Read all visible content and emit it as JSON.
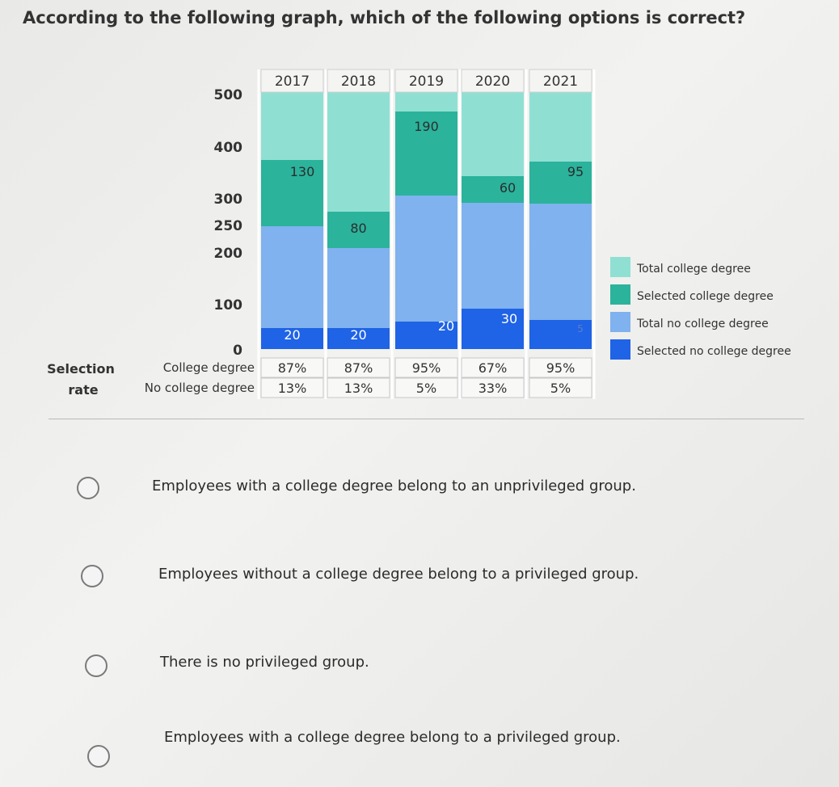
{
  "question": "According to the following graph, which of the following options is correct?",
  "chart_data": {
    "type": "bar",
    "stacked": true,
    "categories": [
      "2017",
      "2018",
      "2019",
      "2020",
      "2021"
    ],
    "yticks": [
      "500",
      "400",
      "300",
      "250",
      "200",
      "100",
      "0"
    ],
    "series": [
      {
        "name": "Total college degree",
        "color": "#8fe0d3",
        "values": [
          null,
          null,
          null,
          null,
          null
        ]
      },
      {
        "name": "Selected college degree",
        "color": "#2bb39c",
        "values": [
          130,
          80,
          190,
          60,
          95
        ]
      },
      {
        "name": "Total no college degree",
        "color": "#7fb2ee",
        "values": [
          null,
          null,
          null,
          null,
          null
        ]
      },
      {
        "name": "Selected no college degree",
        "color": "#1f63e6",
        "values": [
          20,
          20,
          20,
          30,
          5
        ]
      }
    ],
    "selection_rate": {
      "label_line1": "Selection",
      "label_line2": "rate",
      "rows": [
        {
          "label": "College degree",
          "values": [
            "87%",
            "87%",
            "95%",
            "67%",
            "95%"
          ]
        },
        {
          "label": "No college degree",
          "values": [
            "13%",
            "13%",
            "5%",
            "33%",
            "5%"
          ]
        }
      ]
    }
  },
  "options": [
    {
      "text": "Employees with a college degree belong to an unprivileged group."
    },
    {
      "text": "Employees without a college degree belong to a privileged group."
    },
    {
      "text": "There is no privileged group."
    },
    {
      "text": "Employees with a college degree belong to a privileged group."
    }
  ]
}
